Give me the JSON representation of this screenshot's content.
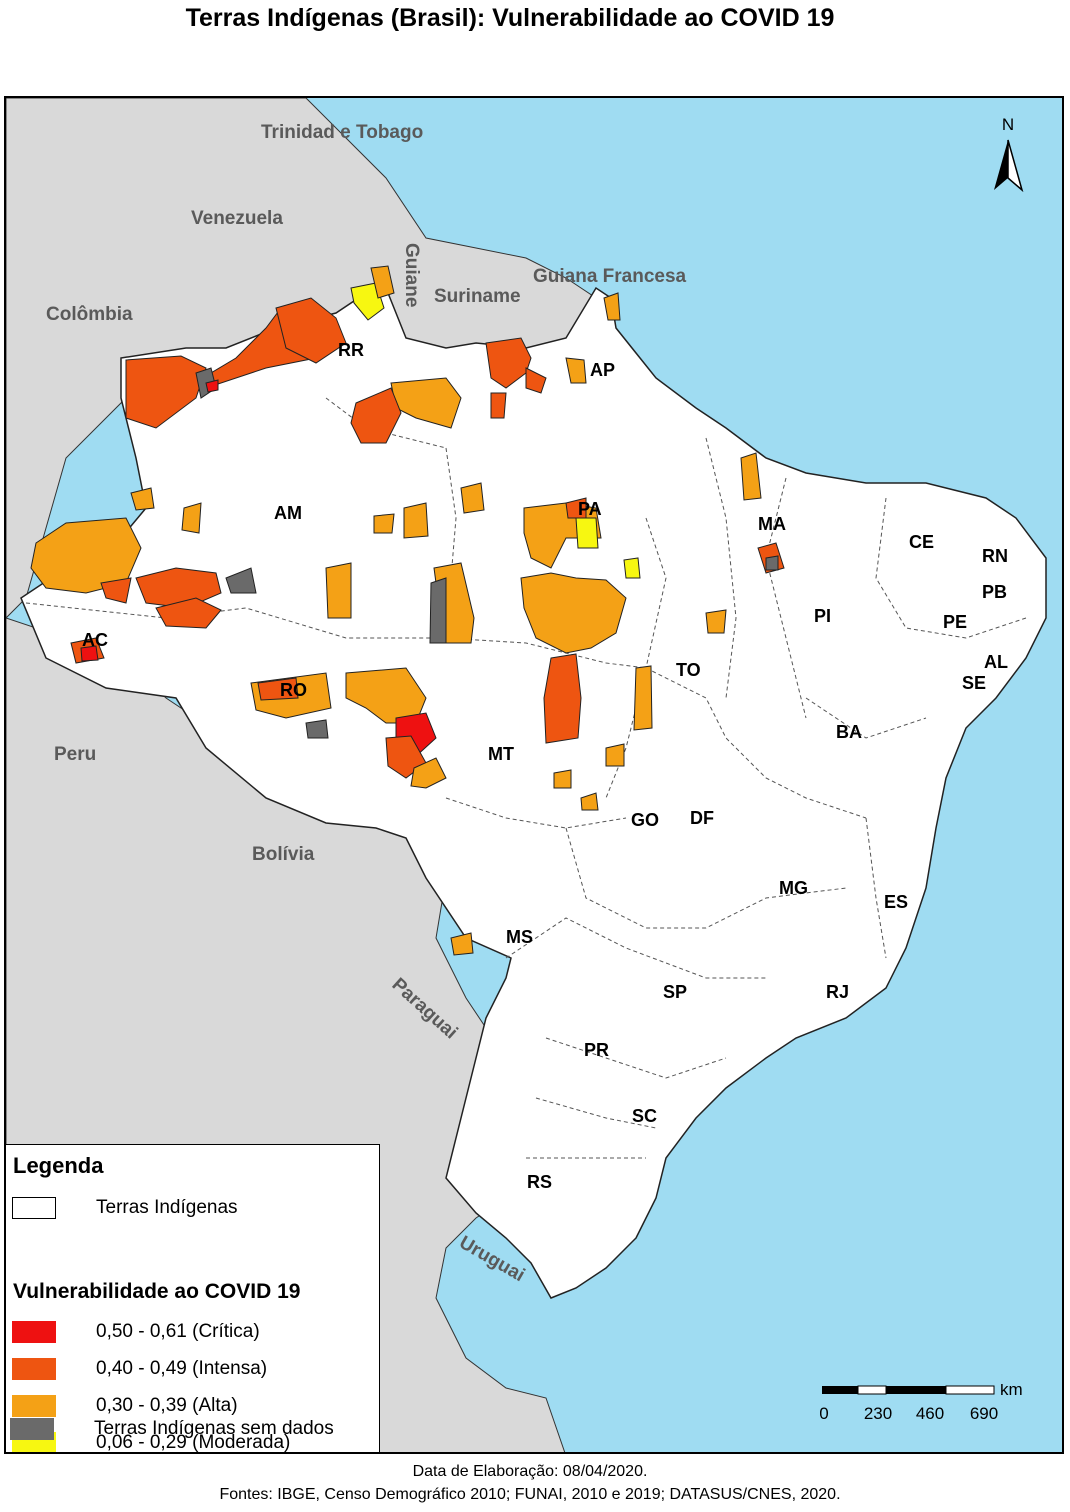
{
  "title": "Terras Indígenas (Brasil): Vulnerabilidade ao COVID 19",
  "countries": {
    "trinidad": "Trinidad e Tobago",
    "venezuela": "Venezuela",
    "guiane": "Guiane",
    "suriname": "Suriname",
    "guiana_francesa": "Guiana Francesa",
    "colombia": "Colômbia",
    "peru": "Peru",
    "bolivia": "Bolívia",
    "paraguai": "Paraguai",
    "uruguai": "Uruguai"
  },
  "states": {
    "rr": "RR",
    "ap": "AP",
    "am": "AM",
    "pa": "PA",
    "ma": "MA",
    "ce": "CE",
    "rn": "RN",
    "pb": "PB",
    "pe": "PE",
    "al": "AL",
    "se": "SE",
    "pi": "PI",
    "ac": "AC",
    "ro": "RO",
    "to": "TO",
    "ba": "BA",
    "mt": "MT",
    "go": "GO",
    "df": "DF",
    "mg": "MG",
    "es": "ES",
    "ms": "MS",
    "sp": "SP",
    "rj": "RJ",
    "pr": "PR",
    "sc": "SC",
    "rs": "RS"
  },
  "north_label": "N",
  "legend": {
    "title": "Legenda",
    "base_item": "Terras Indígenas",
    "subtitle": "Vulnerabilidade ao COVID 19",
    "items": [
      {
        "label": "0,50 - 0,61 (Crítica)",
        "color": "#ee1111"
      },
      {
        "label": "0,40 - 0,49 (Intensa)",
        "color": "#ee5511"
      },
      {
        "label": "0,30 - 0,39 (Alta)",
        "color": "#f4a116"
      },
      {
        "label": "0,06 - 0,29 (Moderada)",
        "color": "#f7f711"
      },
      {
        "label": "Terras Indígenas sem dados",
        "color": "#6a6a6a"
      }
    ]
  },
  "scale": {
    "unit": "km",
    "ticks": [
      "0",
      "230",
      "460",
      "690"
    ]
  },
  "footer": {
    "date": "Data de Elaboração: 08/04/2020.",
    "sources": "Fontes: IBGE, Censo Demográfico 2010; FUNAI, 2010 e 2019; DATASUS/CNES, 2020."
  },
  "colors": {
    "ocean": "#9fdcf2",
    "neighbors": "#d9d9d9",
    "brazil": "#ffffff",
    "critica": "#ee1111",
    "intensa": "#ee5511",
    "alta": "#f4a116",
    "moderada": "#f7f711",
    "sem_dados": "#6a6a6a"
  }
}
